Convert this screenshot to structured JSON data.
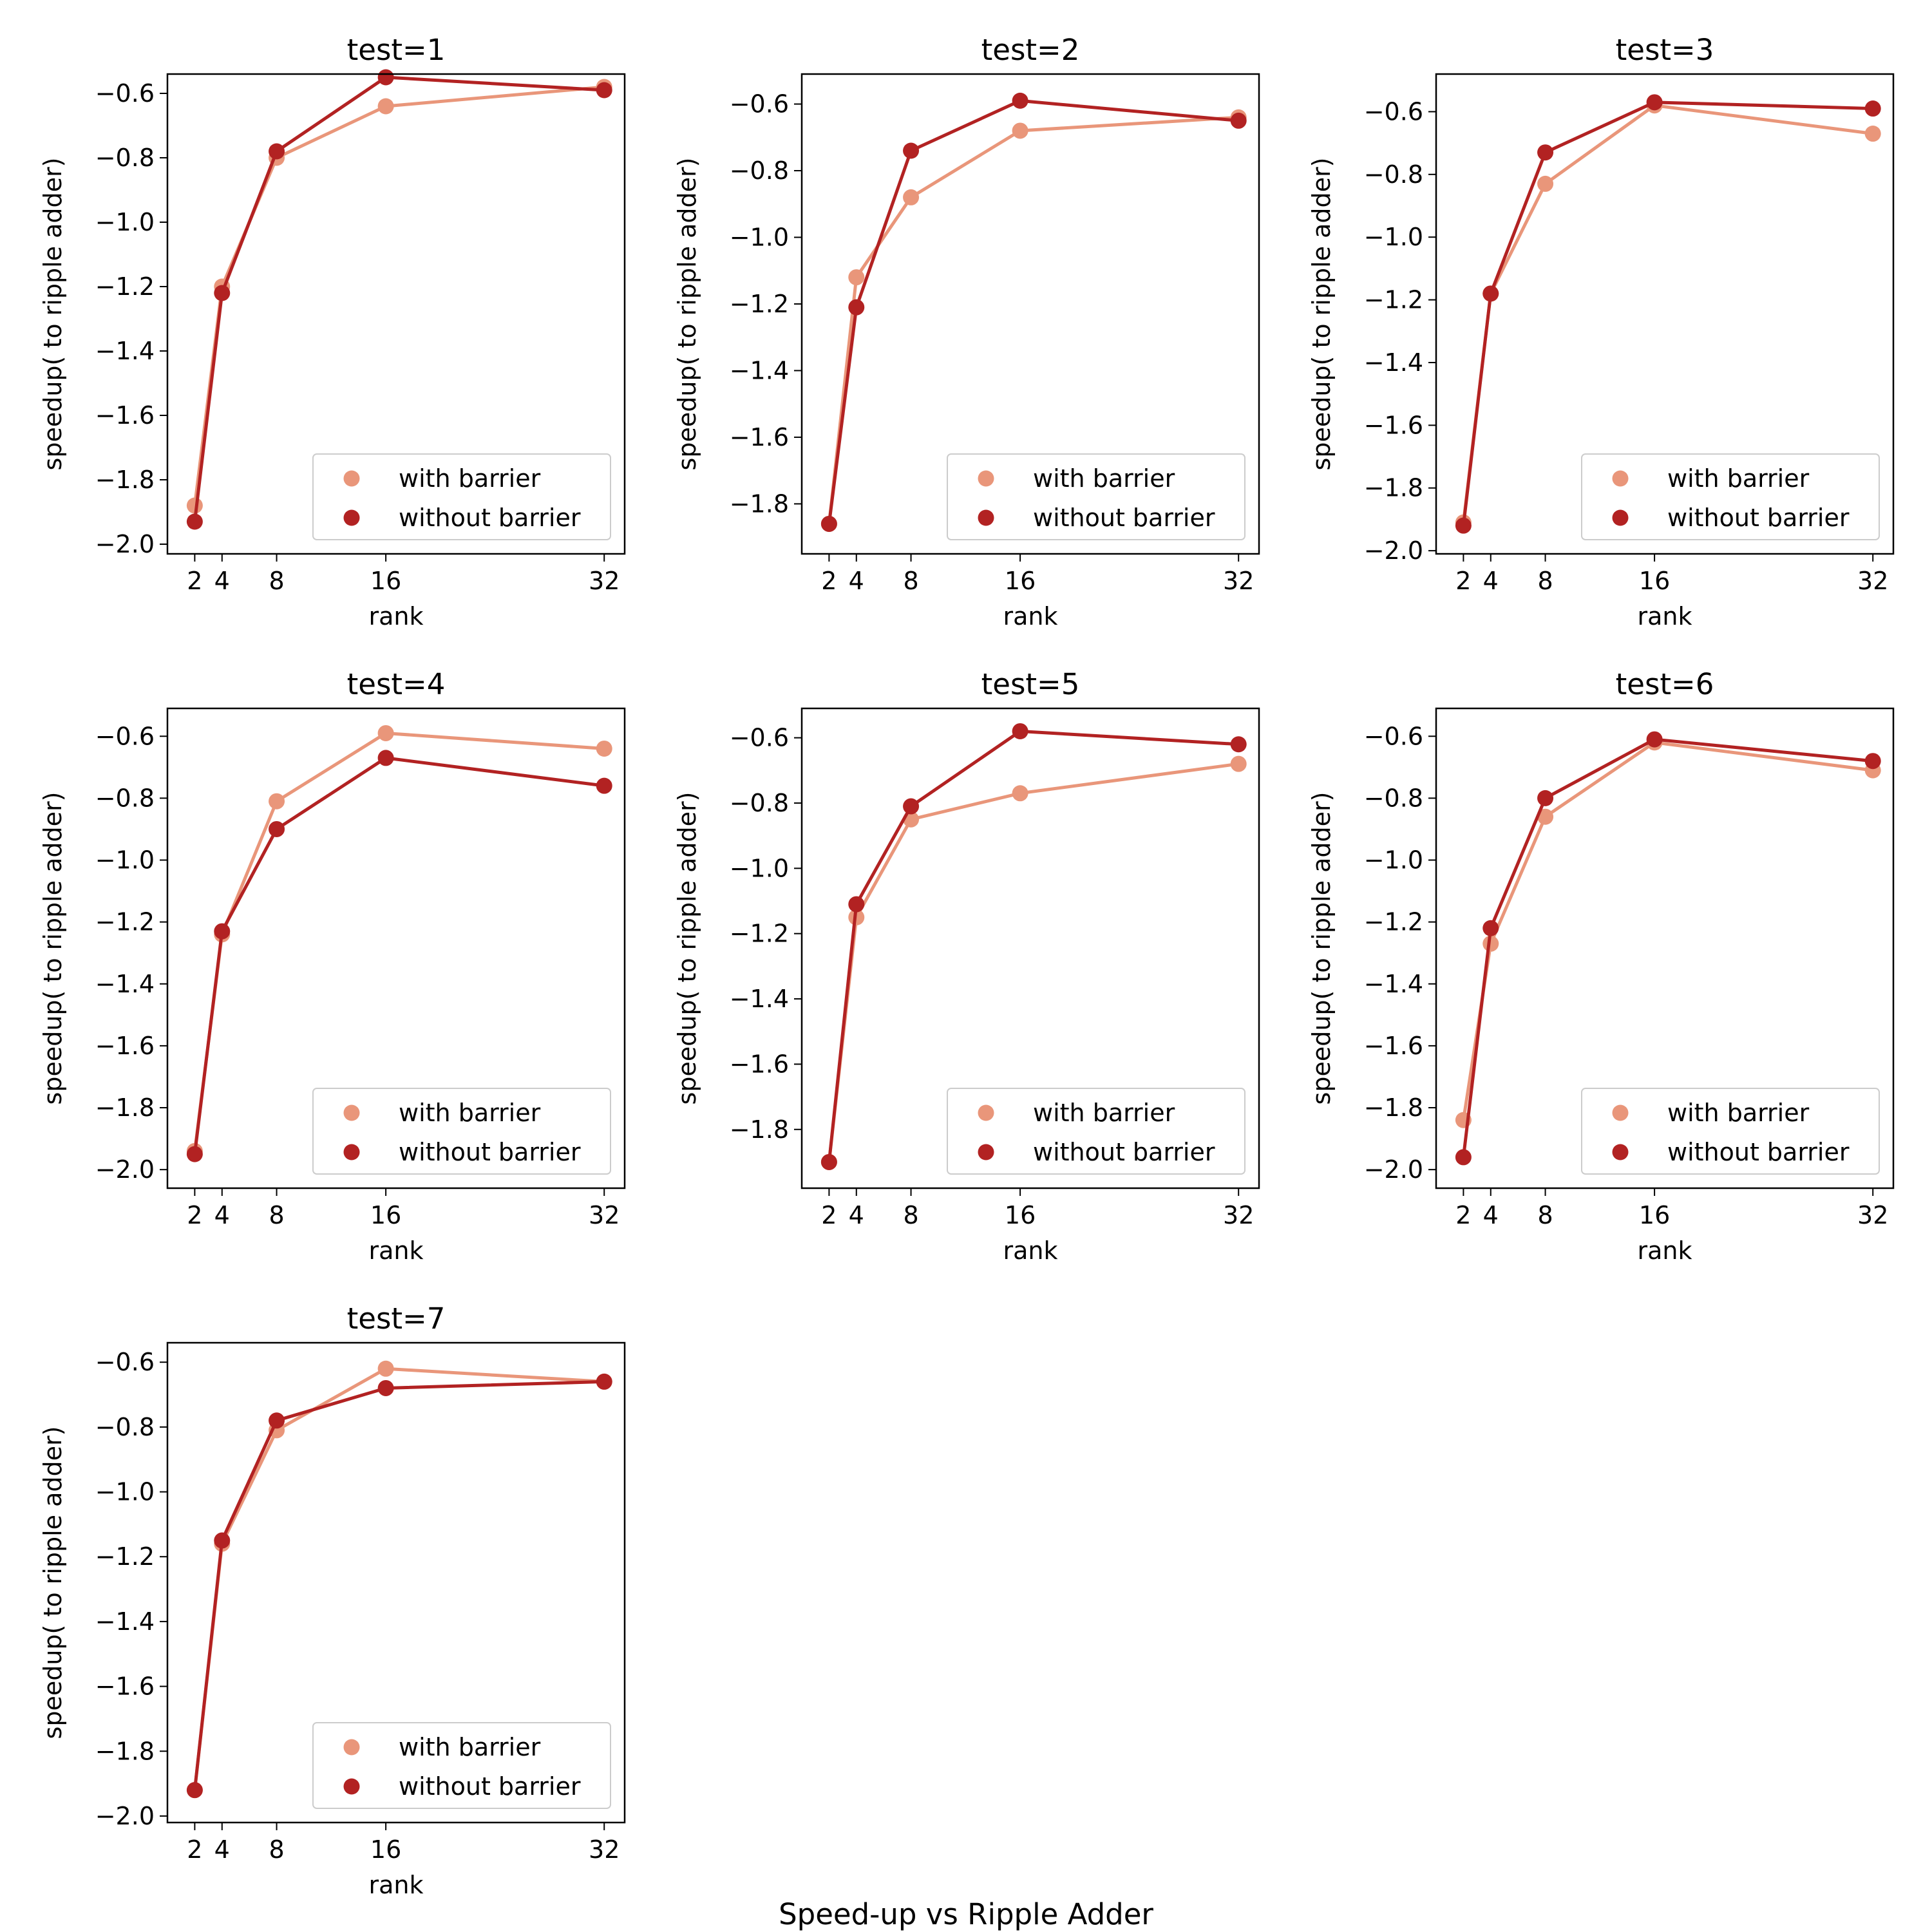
{
  "figure": {
    "suptitle": "Speed-up vs Ripple Adder"
  },
  "colors": {
    "with_barrier": "#e9967a",
    "without_barrier": "#b22222"
  },
  "chart_data": [
    {
      "type": "line",
      "title": "test=1",
      "xlabel": "rank",
      "ylabel": "speedup( to ripple adder)",
      "x": [
        2,
        4,
        8,
        16,
        32
      ],
      "xticks": [
        "2",
        "4",
        "8",
        "16",
        "32"
      ],
      "xlim": [
        0,
        33.5
      ],
      "ylim": [
        -2.03,
        -0.54
      ],
      "yticks": [
        "−2.0",
        "−1.8",
        "−1.6",
        "−1.4",
        "−1.2",
        "−1.0",
        "−0.8",
        "−0.6"
      ],
      "ytick_values": [
        -2.0,
        -1.8,
        -1.6,
        -1.4,
        -1.2,
        -1.0,
        -0.8,
        -0.6
      ],
      "legend": "lower-right",
      "series": [
        {
          "name": "with barrier",
          "values": [
            -1.88,
            -1.2,
            -0.8,
            -0.64,
            -0.58
          ]
        },
        {
          "name": "without barrier",
          "values": [
            -1.93,
            -1.22,
            -0.78,
            -0.55,
            -0.59
          ]
        }
      ]
    },
    {
      "type": "line",
      "title": "test=2",
      "xlabel": "rank",
      "ylabel": "speedup( to ripple adder)",
      "x": [
        2,
        4,
        8,
        16,
        32
      ],
      "xticks": [
        "2",
        "4",
        "8",
        "16",
        "32"
      ],
      "xlim": [
        0,
        33.5
      ],
      "ylim": [
        -1.95,
        -0.51
      ],
      "yticks": [
        "−1.8",
        "−1.6",
        "−1.4",
        "−1.2",
        "−1.0",
        "−0.8",
        "−0.6"
      ],
      "ytick_values": [
        -1.8,
        -1.6,
        -1.4,
        -1.2,
        -1.0,
        -0.8,
        -0.6
      ],
      "legend": "lower-right",
      "series": [
        {
          "name": "with barrier",
          "values": [
            -1.86,
            -1.12,
            -0.88,
            -0.68,
            -0.64
          ]
        },
        {
          "name": "without barrier",
          "values": [
            -1.86,
            -1.21,
            -0.74,
            -0.59,
            -0.65
          ]
        }
      ]
    },
    {
      "type": "line",
      "title": "test=3",
      "xlabel": "rank",
      "ylabel": "speedup( to ripple adder)",
      "x": [
        2,
        4,
        8,
        16,
        32
      ],
      "xticks": [
        "2",
        "4",
        "8",
        "16",
        "32"
      ],
      "xlim": [
        0,
        33.5
      ],
      "ylim": [
        -2.01,
        -0.48
      ],
      "yticks": [
        "−2.0",
        "−1.8",
        "−1.6",
        "−1.4",
        "−1.2",
        "−1.0",
        "−0.8",
        "−0.6"
      ],
      "ytick_values": [
        -2.0,
        -1.8,
        -1.6,
        -1.4,
        -1.2,
        -1.0,
        -0.8,
        -0.6
      ],
      "legend": "lower-right",
      "series": [
        {
          "name": "with barrier",
          "values": [
            -1.91,
            -1.18,
            -0.83,
            -0.58,
            -0.67
          ]
        },
        {
          "name": "without barrier",
          "values": [
            -1.92,
            -1.18,
            -0.73,
            -0.57,
            -0.59
          ]
        }
      ]
    },
    {
      "type": "line",
      "title": "test=4",
      "xlabel": "rank",
      "ylabel": "speedup( to ripple adder)",
      "x": [
        2,
        4,
        8,
        16,
        32
      ],
      "xticks": [
        "2",
        "4",
        "8",
        "16",
        "32"
      ],
      "xlim": [
        0,
        33.5
      ],
      "ylim": [
        -2.06,
        -0.51
      ],
      "yticks": [
        "−2.0",
        "−1.8",
        "−1.6",
        "−1.4",
        "−1.2",
        "−1.0",
        "−0.8",
        "−0.6"
      ],
      "ytick_values": [
        -2.0,
        -1.8,
        -1.6,
        -1.4,
        -1.2,
        -1.0,
        -0.8,
        -0.6
      ],
      "legend": "lower-right",
      "series": [
        {
          "name": "with barrier",
          "values": [
            -1.94,
            -1.24,
            -0.81,
            -0.59,
            -0.64
          ]
        },
        {
          "name": "without barrier",
          "values": [
            -1.95,
            -1.23,
            -0.9,
            -0.67,
            -0.76
          ]
        }
      ]
    },
    {
      "type": "line",
      "title": "test=5",
      "xlabel": "rank",
      "ylabel": "speedup( to ripple adder)",
      "x": [
        2,
        4,
        8,
        16,
        32
      ],
      "xticks": [
        "2",
        "4",
        "8",
        "16",
        "32"
      ],
      "xlim": [
        0,
        33.5
      ],
      "ylim": [
        -1.98,
        -0.51
      ],
      "yticks": [
        "−1.8",
        "−1.6",
        "−1.4",
        "−1.2",
        "−1.0",
        "−0.8",
        "−0.6"
      ],
      "ytick_values": [
        -1.8,
        -1.6,
        -1.4,
        -1.2,
        -1.0,
        -0.8,
        -0.6
      ],
      "legend": "lower-right",
      "series": [
        {
          "name": "with barrier",
          "values": [
            -1.9,
            -1.15,
            -0.85,
            -0.77,
            -0.68
          ]
        },
        {
          "name": "without barrier",
          "values": [
            -1.9,
            -1.11,
            -0.81,
            -0.58,
            -0.62
          ]
        }
      ]
    },
    {
      "type": "line",
      "title": "test=6",
      "xlabel": "rank",
      "ylabel": "speedup( to ripple adder)",
      "x": [
        2,
        4,
        8,
        16,
        32
      ],
      "xticks": [
        "2",
        "4",
        "8",
        "16",
        "32"
      ],
      "xlim": [
        0,
        33.5
      ],
      "ylim": [
        -2.06,
        -0.51
      ],
      "yticks": [
        "−2.0",
        "−1.8",
        "−1.6",
        "−1.4",
        "−1.2",
        "−1.0",
        "−0.8",
        "−0.6"
      ],
      "ytick_values": [
        -2.0,
        -1.8,
        -1.6,
        -1.4,
        -1.2,
        -1.0,
        -0.8,
        -0.6
      ],
      "legend": "lower-right",
      "series": [
        {
          "name": "with barrier",
          "values": [
            -1.84,
            -1.27,
            -0.86,
            -0.62,
            -0.71
          ]
        },
        {
          "name": "without barrier",
          "values": [
            -1.96,
            -1.22,
            -0.8,
            -0.61,
            -0.68
          ]
        }
      ]
    },
    {
      "type": "line",
      "title": "test=7",
      "xlabel": "rank",
      "ylabel": "speedup( to ripple adder)",
      "x": [
        2,
        4,
        8,
        16,
        32
      ],
      "xticks": [
        "2",
        "4",
        "8",
        "16",
        "32"
      ],
      "xlim": [
        0,
        33.5
      ],
      "ylim": [
        -2.02,
        -0.54
      ],
      "yticks": [
        "−2.0",
        "−1.8",
        "−1.6",
        "−1.4",
        "−1.2",
        "−1.0",
        "−0.8",
        "−0.6"
      ],
      "ytick_values": [
        -2.0,
        -1.8,
        -1.6,
        -1.4,
        -1.2,
        -1.0,
        -0.8,
        -0.6
      ],
      "legend": "lower-right",
      "series": [
        {
          "name": "with barrier",
          "values": [
            -1.92,
            -1.16,
            -0.81,
            -0.62,
            -0.66
          ]
        },
        {
          "name": "without barrier",
          "values": [
            -1.92,
            -1.15,
            -0.78,
            -0.68,
            -0.66
          ]
        }
      ]
    }
  ]
}
